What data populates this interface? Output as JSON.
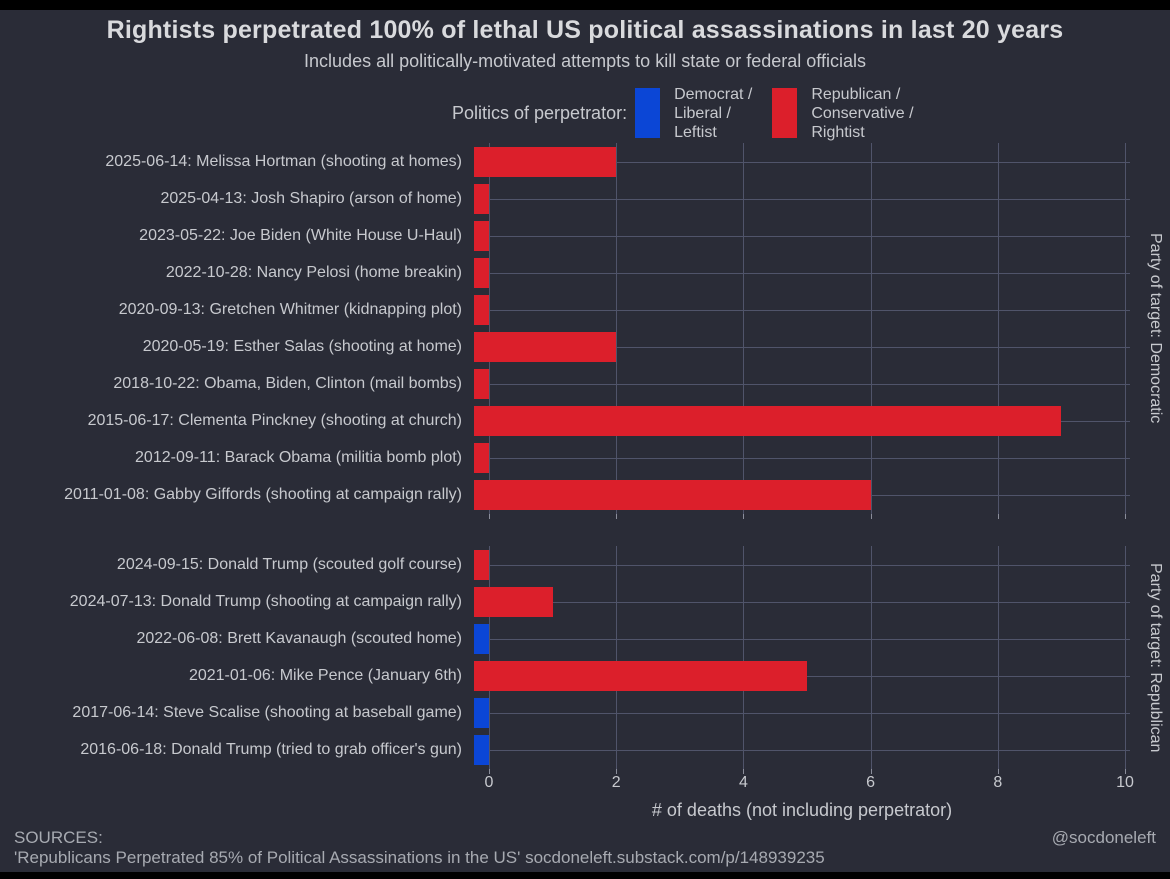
{
  "title": "Rightists perpetrated 100% of lethal US political assassinations in last 20 years",
  "subtitle": "Includes all politically-motivated attempts to kill state or federal officials",
  "legend": {
    "title": "Politics of perpetrator:",
    "items": [
      {
        "key": "leftist",
        "color": "#0b46d6",
        "lines": [
          "Democrat /",
          "Liberal /",
          "Leftist"
        ]
      },
      {
        "key": "rightist",
        "color": "#dc1f2b",
        "lines": [
          "Republican /",
          "Conservative /",
          "Rightist"
        ]
      }
    ]
  },
  "chart_data": {
    "type": "bar",
    "orientation": "horizontal",
    "title": "Rightists perpetrated 100% of lethal US political assassinations in last 20 years",
    "subtitle": "Includes all politically-motivated attempts to kill state or federal officials",
    "xlabel": "# of deaths (not including perpetrator)",
    "xlim": [
      0,
      10
    ],
    "xticks": [
      0,
      2,
      4,
      6,
      8,
      10
    ],
    "grid": true,
    "legend_position": "top",
    "colors": {
      "leftist": "#0b46d6",
      "rightist": "#dc1f2b"
    },
    "panels": [
      {
        "strip_label": "Party of target: Democratic",
        "rows": [
          {
            "label": "2025-06-14: Melissa Hortman (shooting at homes)",
            "deaths": 2,
            "perpetrator": "rightist"
          },
          {
            "label": "2025-04-13: Josh Shapiro (arson of home)",
            "deaths": 0,
            "perpetrator": "rightist"
          },
          {
            "label": "2023-05-22: Joe Biden (White House U-Haul)",
            "deaths": 0,
            "perpetrator": "rightist"
          },
          {
            "label": "2022-10-28: Nancy Pelosi (home breakin)",
            "deaths": 0,
            "perpetrator": "rightist"
          },
          {
            "label": "2020-09-13: Gretchen Whitmer (kidnapping plot)",
            "deaths": 0,
            "perpetrator": "rightist"
          },
          {
            "label": "2020-05-19: Esther Salas (shooting at home)",
            "deaths": 2,
            "perpetrator": "rightist"
          },
          {
            "label": "2018-10-22: Obama, Biden, Clinton (mail bombs)",
            "deaths": 0,
            "perpetrator": "rightist"
          },
          {
            "label": "2015-06-17: Clementa Pinckney (shooting at church)",
            "deaths": 9,
            "perpetrator": "rightist"
          },
          {
            "label": "2012-09-11: Barack Obama (militia bomb plot)",
            "deaths": 0,
            "perpetrator": "rightist"
          },
          {
            "label": "2011-01-08: Gabby Giffords (shooting at campaign rally)",
            "deaths": 6,
            "perpetrator": "rightist"
          }
        ]
      },
      {
        "strip_label": "Party of target: Republican",
        "rows": [
          {
            "label": "2024-09-15: Donald Trump (scouted golf course)",
            "deaths": 0,
            "perpetrator": "rightist"
          },
          {
            "label": "2024-07-13: Donald Trump (shooting at campaign rally)",
            "deaths": 1,
            "perpetrator": "rightist"
          },
          {
            "label": "2022-06-08: Brett Kavanaugh (scouted home)",
            "deaths": 0,
            "perpetrator": "leftist"
          },
          {
            "label": "2021-01-06: Mike Pence (January 6th)",
            "deaths": 5,
            "perpetrator": "rightist"
          },
          {
            "label": "2017-06-14: Steve Scalise (shooting at baseball game)",
            "deaths": 0,
            "perpetrator": "leftist"
          },
          {
            "label": "2016-06-18: Donald Trump (tried to grab officer's gun)",
            "deaths": 0,
            "perpetrator": "leftist"
          }
        ]
      }
    ]
  },
  "footer": {
    "sources_label": "SOURCES:",
    "source_citation": "'Republicans Perpetrated 85% of Political Assassinations in the US' socdoneleft.substack.com/p/148939235",
    "handle": "@socdoneleft"
  }
}
